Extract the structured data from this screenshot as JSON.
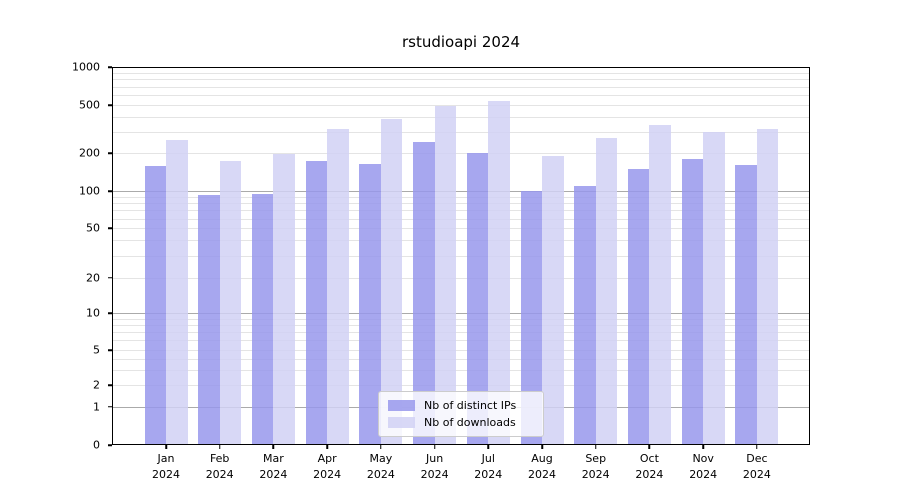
{
  "chart_data": {
    "type": "bar",
    "title": "rstudioapi 2024",
    "categories": [
      "Jan 2024",
      "Feb 2024",
      "Mar 2024",
      "Apr 2024",
      "May 2024",
      "Jun 2024",
      "Jul 2024",
      "Aug 2024",
      "Sep 2024",
      "Oct 2024",
      "Nov 2024",
      "Dec 2024"
    ],
    "series": [
      {
        "name": "Nb of distinct IPs",
        "color": "#9898ec",
        "values": [
          158,
          93,
          95,
          173,
          163,
          250,
          200,
          100,
          110,
          150,
          180,
          160
        ]
      },
      {
        "name": "Nb of downloads",
        "color": "#d1d1f5",
        "values": [
          260,
          175,
          198,
          315,
          385,
          487,
          540,
          190,
          270,
          340,
          298,
          318
        ]
      }
    ],
    "bar_alpha": 0.85,
    "ylim": [
      0,
      1000
    ],
    "yticks": [
      1000,
      500,
      200,
      100,
      50,
      20,
      10,
      5,
      2,
      1,
      0
    ],
    "y_scale": "symlog",
    "y_scale_anchors": [
      [
        0,
        1.0
      ],
      [
        1,
        0.8987
      ],
      [
        2,
        0.8413
      ],
      [
        5,
        0.7487
      ],
      [
        10,
        0.6516
      ],
      [
        20,
        0.5574
      ],
      [
        50,
        0.4267
      ],
      [
        100,
        0.328
      ],
      [
        200,
        0.2283
      ],
      [
        500,
        0.1005
      ],
      [
        1000,
        0.0
      ]
    ],
    "major_gridlines": [
      1,
      10,
      100,
      1000
    ],
    "minor_gridlines": [
      2,
      3,
      4,
      5,
      6,
      7,
      8,
      9,
      20,
      30,
      40,
      50,
      60,
      70,
      80,
      90,
      200,
      300,
      400,
      500,
      600,
      700,
      800,
      900
    ],
    "grid": true,
    "legend_position": "lower center",
    "colors": {
      "grid_major": "#aaaaaa",
      "grid_minor": "#e4e4e4",
      "spine": "#000000",
      "background": "#ffffff",
      "text": "#000000"
    }
  }
}
